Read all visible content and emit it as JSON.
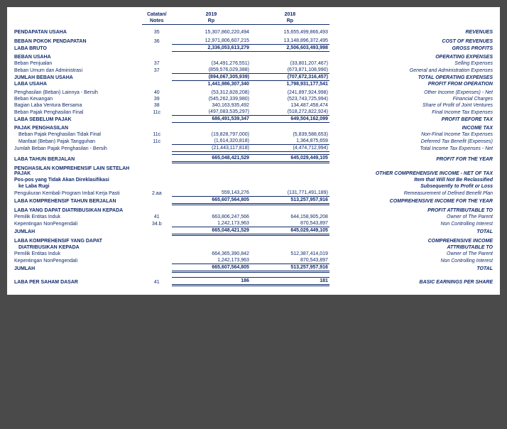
{
  "columns": {
    "notes_label_id": "Catatan/",
    "notes_label_en": "Notes",
    "year1": "2019",
    "year2": "2018",
    "currency": "Rp"
  },
  "rows": {
    "revenue": {
      "left": "PENDAPATAN USAHA",
      "note": "35",
      "y1": "15,307,860,220,494",
      "y2": "15,655,499,866,493",
      "right": "REVENUES"
    },
    "cost_rev": {
      "left": "BEBAN POKOK PENDAPATAN",
      "note": "36",
      "y1": "12,971,806,607,215",
      "y2": "13,148,896,372,495",
      "right": "COST OF REVENUES"
    },
    "gross_profit": {
      "left": "LABA BRUTO",
      "y1": "2,336,053,613,279",
      "y2": "2,506,603,493,998",
      "right": "GROSS PROFITS"
    },
    "opex_hdr": {
      "left": "BEBAN USAHA",
      "right": "OPERATING EXPENSES"
    },
    "selling": {
      "left": "Beban Penjualan",
      "note": "37",
      "y1": "(34,491,276,551)",
      "y2": "(33,801,207,467)",
      "right": "Selling Expenses"
    },
    "ga": {
      "left": "Beban Umum dan Administrasi",
      "note": "37",
      "y1": "(859,576,029,388)",
      "y2": "(673,871,108,990)",
      "right": "General  and  Administration Expenses"
    },
    "total_opex": {
      "left": "JUMLAH BEBAN USAHA",
      "y1": "(894,067,305,939)",
      "y2": "(707,672,316,457)",
      "right": "TOTAL OPERATING EXPENSES"
    },
    "op_profit": {
      "left": "LABA USAHA",
      "y1": "1,441,986,307,340",
      "y2": "1,798,931,177,541",
      "right": "PROFIT FROM OPERATION"
    },
    "other_inc": {
      "left": "Penghasilan (Beban) Lainnya - Bersih",
      "note": "40",
      "y1": "(53,312,828,208)",
      "y2": "(241,897,924,998)",
      "right": "Other Income (Expenses) - Net"
    },
    "fin_chg": {
      "left": "Beban Keuangan",
      "note": "39",
      "y1": "(545,262,339,980)",
      "y2": "(523,743,725,994)",
      "right": "Financial Charges"
    },
    "jv": {
      "left": "Bagian Laba Ventura Bersama",
      "note": "38",
      "y1": "340,163,935,492",
      "y2": "134,487,458,474",
      "right": "Share of Profit of Joint Ventures"
    },
    "final_tax": {
      "left": "Beban Pajak Penghasilan Final",
      "note": "11c",
      "y1": "(497,083,535,297)",
      "y2": "(518,272,822,924)",
      "right": "Final Income Tax Expenses"
    },
    "pbt": {
      "left": "LABA SEBELUM PAJAK",
      "y1": "686,491,539,347",
      "y2": "649,504,162,099",
      "right": "PROFIT BEFORE TAX"
    },
    "tax_hdr": {
      "left": "PAJAK PENGHASILAN",
      "right": "INCOME TAX"
    },
    "cur_tax": {
      "left": "Beban Pajak Penghasilan Tidak Final",
      "note": "11c",
      "y1": "(19,828,797,000)",
      "y2": "(5,839,588,653)",
      "right": "Non-Final Income Tax Expenses"
    },
    "def_tax": {
      "left": "Manfaat (Beban) Pajak Tangguhan",
      "note": "11c",
      "y1": "(1,614,320,818)",
      "y2": "1,364,875,659",
      "right": "Deferred Tax Benefit (Expenses)"
    },
    "tot_tax": {
      "left": "Jumlah Beban Pajak Penghasilan - Bersih",
      "y1": "(21,443,117,818)",
      "y2": "(4,474,712,994)",
      "right": "Total Income Tax Expenses - Net"
    },
    "profit_year": {
      "left": "LABA TAHUN BERJALAN",
      "y1": "665,048,421,529",
      "y2": "645,029,449,105",
      "right": "PROFIT FOR THE YEAR"
    },
    "oci_hdr": {
      "left": "PENGHASILAN KOMPREHENSIF LAIN SETELAH PAJAK",
      "right": "OTHER COMPREHENSIVE INCOME - NET OF TAX"
    },
    "no_reclass1": {
      "left": "Pos-pos yang Tidak Akan Direklasifikasi",
      "right": "Item that Will Not Be Reclassified"
    },
    "no_reclass2": {
      "left": "ke Laba Rugi",
      "right": "Subsequently to Profit or Loss"
    },
    "remeasure": {
      "left": "Pengukuran Kembali Program Imbal Kerja Pasti",
      "note": "2.aa",
      "y1": "559,143,276",
      "y2": "(131,771,491,189)",
      "right": "Remeasurement of Defined Benefit Plan"
    },
    "comp_inc_year": {
      "left": "LABA KOMPREHENSIF TAHUN BERJALAN",
      "y1": "665,607,564,805",
      "y2": "513,257,957,916",
      "right": "COMPREHENSIVE INCOME FOR THE YEAR"
    },
    "attr_hdr": {
      "left": "LABA YANG DAPAT DIATRIBUSIKAN KEPADA",
      "right": "PROFIT ATTRIBUTABLE TO"
    },
    "owner_parent": {
      "left": "Pemilik Entitas Induk",
      "note": "41",
      "y1": "663,806,247,566",
      "y2": "644,158,905,208",
      "right": "Owner of The Parent"
    },
    "nci": {
      "left": "Kepentingan NonPengendali",
      "note": "34.b",
      "y1": "1,242,173,963",
      "y2": "870,543,897",
      "right": "Non Controlling Interest"
    },
    "attr_total": {
      "left": "JUMLAH",
      "y1": "665,048,421,529",
      "y2": "645,029,449,105",
      "right": "TOTAL"
    },
    "ci_attr_hdr1": {
      "left": "LABA KOMPREHENSIF YANG DAPAT",
      "right": "COMPREHENSIVE INCOME"
    },
    "ci_attr_hdr2": {
      "left": "DIATRIBUSIKAN KEPADA",
      "right": "ATTRIBUTABLE TO"
    },
    "ci_owner": {
      "left": "Pemilik Entitas Induk",
      "y1": "664,365,390,842",
      "y2": "512,387,414,019",
      "right": "Owner of The Parent"
    },
    "ci_nci": {
      "left": "Kepentingan NonPengendali",
      "y1": "1,242,173,963",
      "y2": "870,543,897",
      "right": "Non Controlling Interest"
    },
    "ci_total": {
      "left": "JUMLAH",
      "y1": "665,607,564,805",
      "y2": "513,257,957,916",
      "right": "TOTAL"
    },
    "eps": {
      "left": "LABA PER SAHAM DASAR",
      "note": "41",
      "y1": "186",
      "y2": "181",
      "right": "BASIC EARNINGS PER SHARE"
    }
  }
}
